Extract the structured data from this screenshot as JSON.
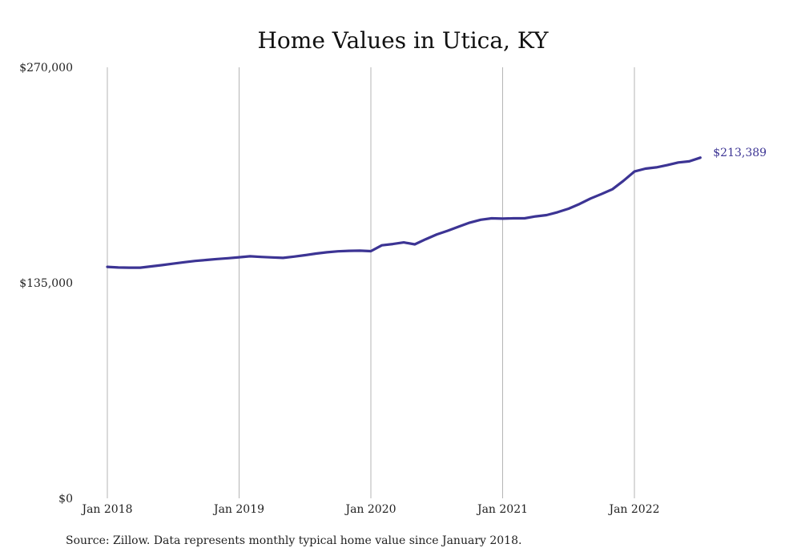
{
  "chart_data": {
    "type": "line",
    "title": "Home Values in Utica, KY",
    "xlabel": "",
    "ylabel": "",
    "ylim": [
      0,
      270000
    ],
    "yticks": [
      {
        "value": 0,
        "label": "$0"
      },
      {
        "value": 135000,
        "label": "$135,000"
      },
      {
        "value": 270000,
        "label": "$270,000"
      }
    ],
    "xticks": [
      {
        "x": "2018-01",
        "label": "Jan 2018"
      },
      {
        "x": "2019-01",
        "label": "Jan 2019"
      },
      {
        "x": "2020-01",
        "label": "Jan 2020"
      },
      {
        "x": "2021-01",
        "label": "Jan 2021"
      },
      {
        "x": "2022-01",
        "label": "Jan 2022"
      }
    ],
    "grid": "vertical",
    "line_color": "#3c3494",
    "end_label": "$213,389",
    "series": [
      {
        "x": [
          "2018-01",
          "2018-02",
          "2018-03",
          "2018-04",
          "2018-05",
          "2018-06",
          "2018-07",
          "2018-08",
          "2018-09",
          "2018-10",
          "2018-11",
          "2018-12",
          "2019-01",
          "2019-02",
          "2019-03",
          "2019-04",
          "2019-05",
          "2019-06",
          "2019-07",
          "2019-08",
          "2019-09",
          "2019-10",
          "2019-11",
          "2019-12",
          "2020-01",
          "2020-02",
          "2020-03",
          "2020-04",
          "2020-05",
          "2020-06",
          "2020-07",
          "2020-08",
          "2020-09",
          "2020-10",
          "2020-11",
          "2020-12",
          "2021-01",
          "2021-02",
          "2021-03",
          "2021-04",
          "2021-05",
          "2021-06",
          "2021-07",
          "2021-08",
          "2021-09",
          "2021-10",
          "2021-11",
          "2021-12",
          "2022-01",
          "2022-02",
          "2022-03",
          "2022-04",
          "2022-05",
          "2022-06",
          "2022-07"
        ],
        "values": [
          145000,
          144600,
          144500,
          144500,
          145300,
          146100,
          147000,
          147900,
          148700,
          149300,
          149900,
          150400,
          151000,
          151600,
          151200,
          150900,
          150600,
          151400,
          152300,
          153300,
          154100,
          154700,
          155000,
          155100,
          154800,
          158500,
          159300,
          160300,
          159100,
          162300,
          165300,
          167600,
          170200,
          172700,
          174500,
          175400,
          175200,
          175400,
          175400,
          176600,
          177400,
          179200,
          181400,
          184400,
          187800,
          190600,
          193600,
          198900,
          204700,
          206500,
          207300,
          208700,
          210400,
          211100,
          213389
        ]
      }
    ],
    "source": "Source: Zillow. Data represents monthly typical home value since January 2018."
  }
}
